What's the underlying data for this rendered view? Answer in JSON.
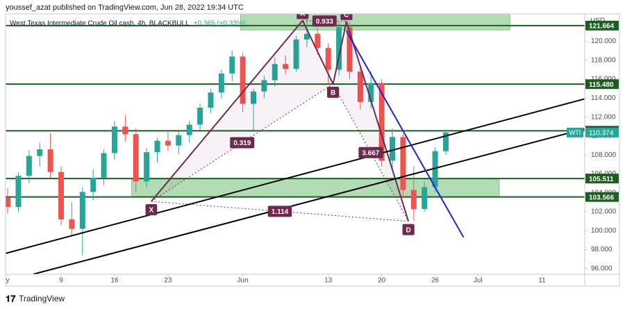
{
  "chart_data": {
    "type": "candlestick",
    "header": "youssef_azat published on TradingView.com, Jun 28, 2022 19:34 UTC",
    "title": "West Texas Intermediate Crude Oil cash, 4h, BLACKBULL",
    "change": "+0.365 (+0.33%)",
    "currency": "USD",
    "symbol": "WTI",
    "last_price": 110.374,
    "footer": "TradingView",
    "up_color": "#26a69a",
    "down_color": "#ef5350",
    "x": [
      0,
      1,
      2,
      3,
      4,
      5,
      6,
      7,
      8,
      9,
      10,
      11,
      12,
      13,
      14,
      15,
      16,
      17,
      18,
      19,
      20,
      21,
      22,
      23,
      24,
      25,
      26,
      27,
      28,
      29,
      30,
      31,
      32,
      33,
      34,
      35,
      36,
      37,
      38,
      39,
      40,
      41
    ],
    "open": [
      103.5,
      102.5,
      105.8,
      107.9,
      108.6,
      106.2,
      101.2,
      100.2,
      104.1,
      105.6,
      108.2,
      111.0,
      110.2,
      105.2,
      108.3,
      109.5,
      109.0,
      110.1,
      111.2,
      113.0,
      114.6,
      116.6,
      118.4,
      113.4,
      114.7,
      115.9,
      117.6,
      117.1,
      120.2,
      120.8,
      119.3,
      117.0,
      121.5,
      116.8,
      113.6,
      115.6,
      107.4,
      109.9,
      104.3,
      102.3,
      104.6,
      108.4
    ],
    "high": [
      104.5,
      106.2,
      108.5,
      109.3,
      110.3,
      106.8,
      103.0,
      104.6,
      106.5,
      108.6,
      111.6,
      112.2,
      110.8,
      108.7,
      109.8,
      110.6,
      110.5,
      111.6,
      113.4,
      115.0,
      117.0,
      119.0,
      118.8,
      115.0,
      116.4,
      118.3,
      118.5,
      120.6,
      122.3,
      121.4,
      119.8,
      122.0,
      122.1,
      117.5,
      116.8,
      116.0,
      110.8,
      110.2,
      106.8,
      105.2,
      108.8,
      110.7
    ],
    "low": [
      101.8,
      102.0,
      105.0,
      106.8,
      105.5,
      100.6,
      99.5,
      97.4,
      103.2,
      104.8,
      107.5,
      109.4,
      104.1,
      104.6,
      107.2,
      108.4,
      108.1,
      109.3,
      110.6,
      112.4,
      114.0,
      115.8,
      112.5,
      110.6,
      114.0,
      115.2,
      116.5,
      116.8,
      119.4,
      118.6,
      115.5,
      116.4,
      116.0,
      112.8,
      112.9,
      106.8,
      106.5,
      103.5,
      101.0,
      102.0,
      104.0,
      108.0
    ],
    "close": [
      102.5,
      105.8,
      107.9,
      108.6,
      106.2,
      101.2,
      100.2,
      104.1,
      105.6,
      108.2,
      111.0,
      110.2,
      105.2,
      108.3,
      109.5,
      109.0,
      110.1,
      111.2,
      113.0,
      114.6,
      116.6,
      118.4,
      113.4,
      114.7,
      115.9,
      117.6,
      117.1,
      120.2,
      120.8,
      119.3,
      117.0,
      121.5,
      116.8,
      113.6,
      115.6,
      107.4,
      109.9,
      104.3,
      102.3,
      104.6,
      108.4,
      110.374
    ],
    "xlim": [
      -0.2,
      54
    ],
    "ylim": [
      95.4,
      122.9
    ],
    "xticks": [
      {
        "value": 0,
        "label": "y"
      },
      {
        "value": 5,
        "label": "9"
      },
      {
        "value": 10,
        "label": "16"
      },
      {
        "value": 15,
        "label": "23"
      },
      {
        "value": 22,
        "label": "Jun"
      },
      {
        "value": 30,
        "label": "13"
      },
      {
        "value": 35,
        "label": "20"
      },
      {
        "value": 40,
        "label": "26"
      },
      {
        "value": 44,
        "label": "Jul"
      },
      {
        "value": 50,
        "label": "11"
      }
    ],
    "yticks": [
      {
        "value": 96,
        "label": "96.000"
      },
      {
        "value": 98,
        "label": "98.000"
      },
      {
        "value": 100,
        "label": "100.000"
      },
      {
        "value": 102,
        "label": "102.000"
      },
      {
        "value": 104,
        "label": "104.000"
      },
      {
        "value": 106,
        "label": "106.000"
      },
      {
        "value": 108,
        "label": "108.000"
      },
      {
        "value": 110,
        "label": "110.000"
      },
      {
        "value": 112,
        "label": "112.000"
      },
      {
        "value": 114,
        "label": "114.000"
      },
      {
        "value": 116,
        "label": "116.000"
      },
      {
        "value": 118,
        "label": "118.000"
      },
      {
        "value": 120,
        "label": "120.000"
      }
    ],
    "levels": [
      {
        "value": 121.664,
        "label": "121.664"
      },
      {
        "value": 115.48,
        "label": "115.480"
      },
      {
        "value": 110.557,
        "label": "110.557"
      },
      {
        "value": 105.511,
        "label": "105.511"
      },
      {
        "value": 103.566,
        "label": "103.566"
      }
    ],
    "level_color": "#1b5e20",
    "zones": [
      {
        "x": [
          21.8,
          47.0
        ],
        "y": [
          121.2,
          122.9
        ]
      },
      {
        "x": [
          11.6,
          46.0
        ],
        "y": [
          103.56,
          105.47
        ]
      }
    ],
    "zone_color": "#a5d6a7",
    "trendlines": [
      {
        "x": [
          -0.2,
          53.96
        ],
        "y": [
          97.61,
          113.91
        ],
        "color": "#000000"
      },
      {
        "x": [
          2.4,
          53.96
        ],
        "y": [
          95.41,
          110.75
        ],
        "color": "#000000"
      },
      {
        "x": [
          31.69,
          42.66
        ],
        "y": [
          121.1,
          99.3
        ],
        "color": "#1e22d6"
      }
    ],
    "pattern": {
      "color": "#6d2a4e",
      "points": [
        {
          "label": "X",
          "x": 13.44,
          "y": 103.1
        },
        {
          "label": "A",
          "x": 27.6,
          "y": 122.2
        },
        {
          "label": "B",
          "x": 30.45,
          "y": 115.5
        },
        {
          "label": "C",
          "x": 31.7,
          "y": 122.1
        },
        {
          "label": "D",
          "x": 37.5,
          "y": 101.0
        }
      ],
      "ratios": [
        0.319,
        0.933,
        3.667,
        1.114
      ]
    }
  }
}
